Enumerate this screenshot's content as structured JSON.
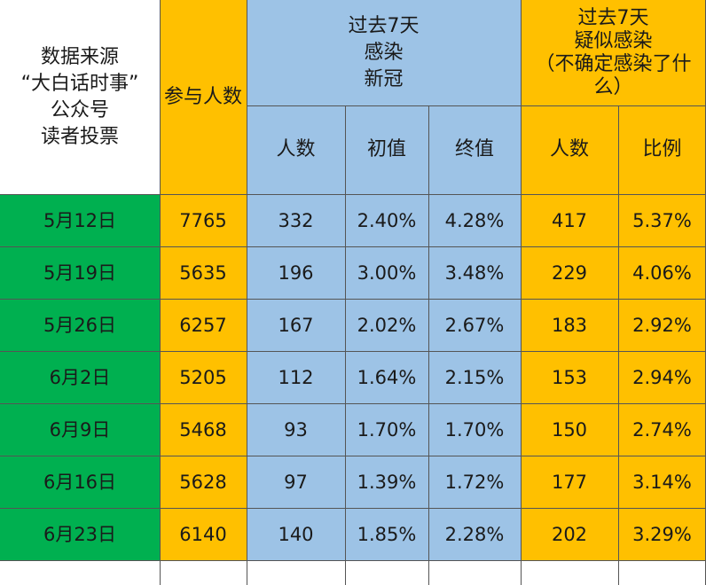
{
  "chart_data": {
    "type": "table",
    "header": {
      "source": [
        "数据来源",
        "“大白话时事”",
        "公众号",
        "读者投票"
      ],
      "participants": "参与人数",
      "covid_group": [
        "过去7天",
        "感染",
        "新冠"
      ],
      "suspected_group": [
        "过去7天",
        "疑似感染",
        "（不确定感染了什",
        "么）"
      ],
      "covid_count": "人数",
      "covid_initial": "初值",
      "covid_final": "终值",
      "suspected_count": "人数",
      "suspected_ratio": "比例"
    },
    "rows": [
      {
        "date": "5月12日",
        "participants": "7765",
        "covid_count": "332",
        "covid_initial": "2.40%",
        "covid_final": "4.28%",
        "suspected_count": "417",
        "suspected_ratio": "5.37%"
      },
      {
        "date": "5月19日",
        "participants": "5635",
        "covid_count": "196",
        "covid_initial": "3.00%",
        "covid_final": "3.48%",
        "suspected_count": "229",
        "suspected_ratio": "4.06%"
      },
      {
        "date": "5月26日",
        "participants": "6257",
        "covid_count": "167",
        "covid_initial": "2.02%",
        "covid_final": "2.67%",
        "suspected_count": "183",
        "suspected_ratio": "2.92%"
      },
      {
        "date": "6月2日",
        "participants": "5205",
        "covid_count": "112",
        "covid_initial": "1.64%",
        "covid_final": "2.15%",
        "suspected_count": "153",
        "suspected_ratio": "2.94%"
      },
      {
        "date": "6月9日",
        "participants": "5468",
        "covid_count": "93",
        "covid_initial": "1.70%",
        "covid_final": "1.70%",
        "suspected_count": "150",
        "suspected_ratio": "2.74%"
      },
      {
        "date": "6月16日",
        "participants": "5628",
        "covid_count": "97",
        "covid_initial": "1.39%",
        "covid_final": "1.72%",
        "suspected_count": "177",
        "suspected_ratio": "3.14%"
      },
      {
        "date": "6月23日",
        "participants": "6140",
        "covid_count": "140",
        "covid_initial": "1.85%",
        "covid_final": "2.28%",
        "suspected_count": "202",
        "suspected_ratio": "3.29%"
      }
    ],
    "colors": {
      "date": "#00b050",
      "orange": "#ffc000",
      "blue": "#9dc3e6",
      "white": "#ffffff"
    }
  }
}
